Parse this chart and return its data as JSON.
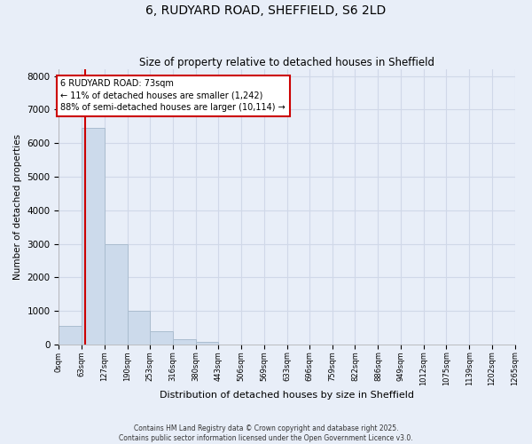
{
  "title": "6, RUDYARD ROAD, SHEFFIELD, S6 2LD",
  "subtitle": "Size of property relative to detached houses in Sheffield",
  "xlabel": "Distribution of detached houses by size in Sheffield",
  "ylabel": "Number of detached properties",
  "bin_edges": [
    0,
    63,
    127,
    190,
    253,
    316,
    380,
    443,
    506,
    569,
    633,
    696,
    759,
    822,
    886,
    949,
    1012,
    1075,
    1139,
    1202,
    1265
  ],
  "bar_heights": [
    550,
    6450,
    3000,
    1000,
    380,
    160,
    80,
    0,
    0,
    0,
    0,
    0,
    0,
    0,
    0,
    0,
    0,
    0,
    0,
    0
  ],
  "bar_color": "#ccdaeb",
  "bar_edgecolor": "#aabdcf",
  "property_size": 73,
  "vline_color": "#cc0000",
  "annotation_text": "6 RUDYARD ROAD: 73sqm\n← 11% of detached houses are smaller (1,242)\n88% of semi-detached houses are larger (10,114) →",
  "annotation_box_facecolor": "#ffffff",
  "annotation_box_edgecolor": "#cc0000",
  "ylim": [
    0,
    8200
  ],
  "yticks": [
    0,
    1000,
    2000,
    3000,
    4000,
    5000,
    6000,
    7000,
    8000
  ],
  "background_color": "#e8eef8",
  "grid_color": "#d0d8e8",
  "footer_line1": "Contains HM Land Registry data © Crown copyright and database right 2025.",
  "footer_line2": "Contains public sector information licensed under the Open Government Licence v3.0."
}
